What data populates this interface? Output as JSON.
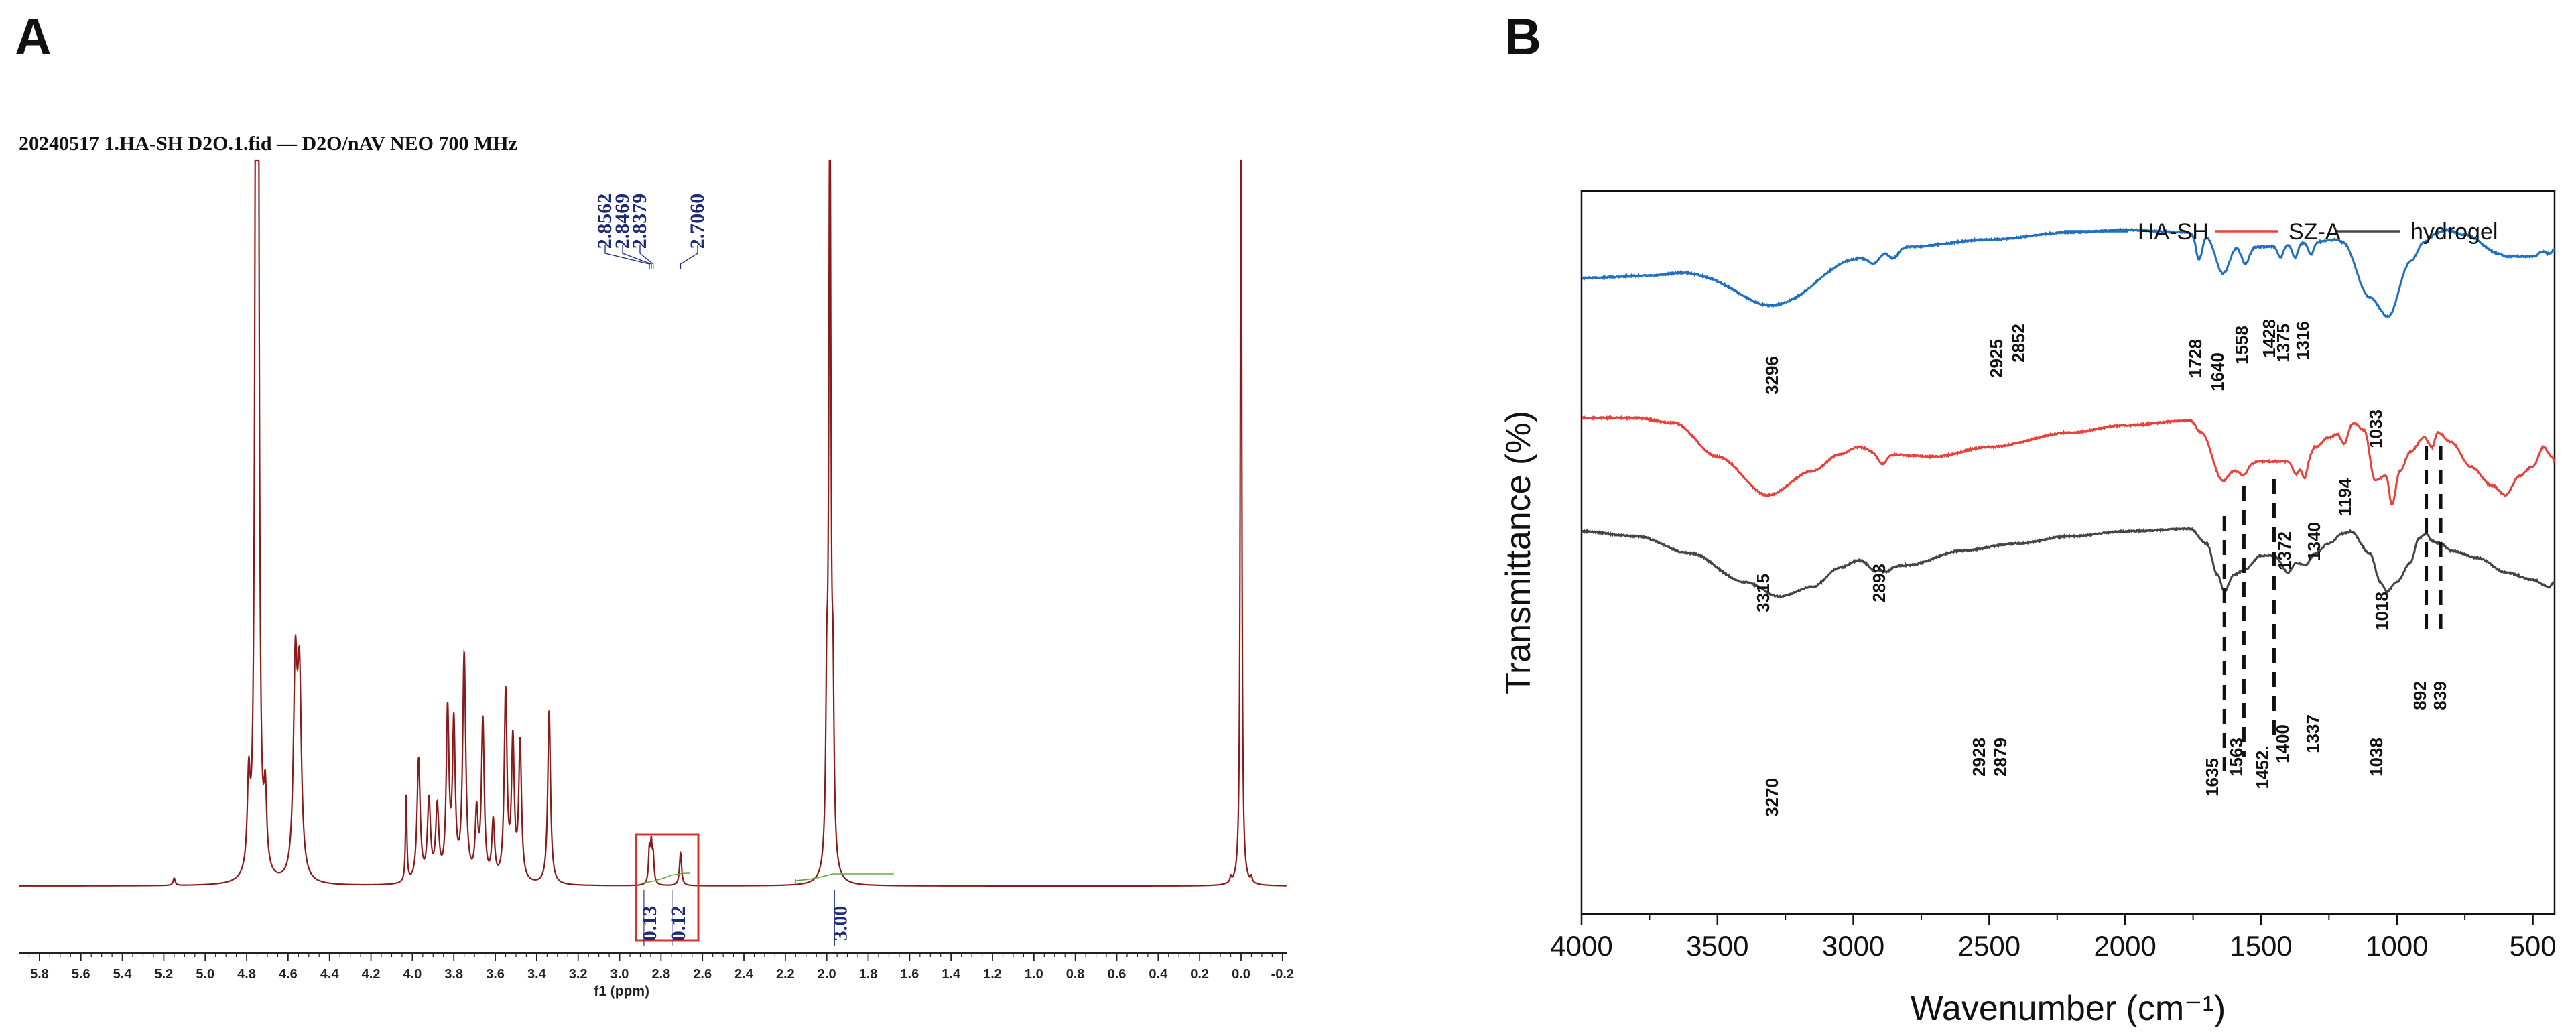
{
  "panels": {
    "a": "A",
    "b": "B"
  },
  "chart_data": [
    {
      "type": "line",
      "title": "20240517 1.HA-SH D2O.1.fid — D2O/nAV NEO 700 MHz",
      "xlabel": "f1 (ppm)",
      "xlim": [
        5.9,
        -0.22
      ],
      "xticks": [
        "5.8",
        "5.6",
        "5.4",
        "5.2",
        "5.0",
        "4.8",
        "4.6",
        "4.4",
        "4.2",
        "4.0",
        "3.8",
        "3.6",
        "3.4",
        "3.2",
        "3.0",
        "2.8",
        "2.6",
        "2.4",
        "2.2",
        "2.0",
        "1.8",
        "1.6",
        "1.4",
        "1.2",
        "1.0",
        "0.8",
        "0.6",
        "0.4",
        "0.2",
        "0.0",
        "-0.2"
      ],
      "color": "#8b1a1a",
      "peaks": [
        {
          "ppm": 5.15,
          "h": 0.01,
          "w": 0.006
        },
        {
          "ppm": 4.79,
          "h": 0.12,
          "w": 0.008
        },
        {
          "ppm": 4.755,
          "h": 1.2,
          "w": 0.006
        },
        {
          "ppm": 4.745,
          "h": 1.2,
          "w": 0.006
        },
        {
          "ppm": 4.71,
          "h": 0.1,
          "w": 0.008
        },
        {
          "ppm": 4.565,
          "h": 0.28,
          "w": 0.011
        },
        {
          "ppm": 4.545,
          "h": 0.26,
          "w": 0.011
        },
        {
          "ppm": 4.03,
          "h": 0.12,
          "w": 0.004
        },
        {
          "ppm": 3.97,
          "h": 0.17,
          "w": 0.009
        },
        {
          "ppm": 3.92,
          "h": 0.11,
          "w": 0.009
        },
        {
          "ppm": 3.88,
          "h": 0.1,
          "w": 0.009
        },
        {
          "ppm": 3.83,
          "h": 0.23,
          "w": 0.008
        },
        {
          "ppm": 3.8,
          "h": 0.21,
          "w": 0.008
        },
        {
          "ppm": 3.75,
          "h": 0.31,
          "w": 0.009
        },
        {
          "ppm": 3.69,
          "h": 0.09,
          "w": 0.008
        },
        {
          "ppm": 3.66,
          "h": 0.22,
          "w": 0.008
        },
        {
          "ppm": 3.61,
          "h": 0.08,
          "w": 0.008
        },
        {
          "ppm": 3.55,
          "h": 0.26,
          "w": 0.008
        },
        {
          "ppm": 3.515,
          "h": 0.19,
          "w": 0.008
        },
        {
          "ppm": 3.48,
          "h": 0.19,
          "w": 0.008
        },
        {
          "ppm": 3.34,
          "h": 0.24,
          "w": 0.008
        },
        {
          "ppm": 2.8562,
          "h": 0.045,
          "w": 0.005
        },
        {
          "ppm": 2.8469,
          "h": 0.05,
          "w": 0.005
        },
        {
          "ppm": 2.8379,
          "h": 0.035,
          "w": 0.005
        },
        {
          "ppm": 2.706,
          "h": 0.045,
          "w": 0.006
        },
        {
          "ppm": 2.0,
          "h": 0.2,
          "w": 0.006
        },
        {
          "ppm": 1.985,
          "h": 1.1,
          "w": 0.006
        },
        {
          "ppm": 1.97,
          "h": 0.2,
          "w": 0.006
        },
        {
          "ppm": 0.05,
          "h": 0.008,
          "w": 0.004
        },
        {
          "ppm": 0.0,
          "h": 1.2,
          "w": 0.004
        },
        {
          "ppm": -0.05,
          "h": 0.008,
          "w": 0.004
        }
      ],
      "peak_labels": [
        "2.8562",
        "2.8469",
        "2.8379",
        "2.7060"
      ],
      "integrals": [
        {
          "label": "0.13",
          "ppm": 2.85
        },
        {
          "label": "0.12",
          "ppm": 2.71
        },
        {
          "label": "3.00",
          "ppm": 1.93
        }
      ],
      "highlight_box": {
        "from_ppm": 2.92,
        "to_ppm": 2.62
      }
    },
    {
      "type": "line",
      "xlabel": "Wavenumber (cm⁻¹)",
      "ylabel": "Transmittance (%)",
      "xlim": [
        4000,
        420
      ],
      "xticks": [
        4000,
        3500,
        3000,
        2500,
        2000,
        1500,
        1000,
        500
      ],
      "legend_position": "top-right",
      "series": [
        {
          "name": "HA-SH",
          "color": "#1f6fbf",
          "baseline": [
            [
              4000,
              0.82
            ],
            [
              3750,
              0.81
            ],
            [
              3600,
              0.79
            ],
            [
              3200,
              0.77
            ],
            [
              3000,
              0.73
            ],
            [
              2800,
              0.69
            ],
            [
              2500,
              0.66
            ],
            [
              2200,
              0.63
            ],
            [
              2000,
              0.62
            ],
            [
              1760,
              0.63
            ],
            [
              1740,
              0.62
            ],
            [
              1650,
              0.66
            ],
            [
              1500,
              0.69
            ],
            [
              1300,
              0.67
            ],
            [
              1220,
              0.66
            ],
            [
              1200,
              0.67
            ],
            [
              1100,
              0.9
            ],
            [
              1033,
              0.98
            ],
            [
              950,
              0.75
            ],
            [
              900,
              0.67
            ],
            [
              850,
              0.63
            ],
            [
              820,
              0.62
            ],
            [
              750,
              0.64
            ],
            [
              620,
              0.72
            ],
            [
              600,
              0.73
            ],
            [
              500,
              0.73
            ],
            [
              460,
              0.71
            ],
            [
              440,
              0.72
            ],
            [
              420,
              0.7
            ]
          ],
          "peaks": [
            [
              3296,
              0.16,
              130
            ],
            [
              2925,
              0.04,
              20
            ],
            [
              2852,
              0.04,
              18
            ],
            [
              1728,
              0.12,
              12
            ],
            [
              1640,
              0.14,
              25
            ],
            [
              1558,
              0.08,
              15
            ],
            [
              1428,
              0.05,
              10
            ],
            [
              1375,
              0.06,
              10
            ],
            [
              1316,
              0.05,
              10
            ]
          ],
          "labels": [
            "3296",
            "2925",
            "2852",
            "1728",
            "1640",
            "1558",
            "1428",
            "1375",
            "1316",
            "1033"
          ]
        },
        {
          "name": "SZ-A",
          "color": "#e8413a",
          "baseline": [
            [
              4000,
              1.4
            ],
            [
              3800,
              1.4
            ],
            [
              3660,
              1.42
            ],
            [
              3500,
              1.56
            ],
            [
              3315,
              1.72
            ],
            [
              3150,
              1.62
            ],
            [
              3050,
              1.55
            ],
            [
              2980,
              1.52
            ],
            [
              2900,
              1.55
            ],
            [
              2700,
              1.56
            ],
            [
              2500,
              1.52
            ],
            [
              2200,
              1.46
            ],
            [
              2000,
              1.43
            ],
            [
              1760,
              1.41
            ],
            [
              1720,
              1.46
            ],
            [
              1640,
              1.66
            ],
            [
              1600,
              1.62
            ],
            [
              1500,
              1.58
            ],
            [
              1420,
              1.58
            ],
            [
              1340,
              1.6
            ],
            [
              1300,
              1.52
            ],
            [
              1250,
              1.48
            ],
            [
              1200,
              1.45
            ],
            [
              1160,
              1.42
            ],
            [
              1120,
              1.45
            ],
            [
              1080,
              1.66
            ],
            [
              1040,
              1.64
            ],
            [
              1018,
              1.76
            ],
            [
              990,
              1.62
            ],
            [
              950,
              1.54
            ],
            [
              900,
              1.48
            ],
            [
              870,
              1.52
            ],
            [
              850,
              1.46
            ],
            [
              800,
              1.5
            ],
            [
              730,
              1.6
            ],
            [
              650,
              1.68
            ],
            [
              600,
              1.72
            ],
            [
              550,
              1.64
            ],
            [
              500,
              1.6
            ],
            [
              460,
              1.52
            ],
            [
              430,
              1.56
            ],
            [
              420,
              1.58
            ]
          ],
          "peaks": [
            [
              2893,
              0.04,
              15
            ],
            [
              1563,
              0.03,
              12
            ],
            [
              1372,
              0.04,
              10
            ],
            [
              1340,
              0.05,
              8
            ],
            [
              1194,
              0.06,
              12
            ]
          ],
          "labels": [
            "3315",
            "2893",
            "1372",
            "1340",
            "1194",
            "1018"
          ]
        },
        {
          "name": "hydrogel",
          "color": "#444444",
          "baseline": [
            [
              4000,
              1.87
            ],
            [
              3800,
              1.89
            ],
            [
              3600,
              1.96
            ],
            [
              3400,
              2.08
            ],
            [
              3270,
              2.14
            ],
            [
              3150,
              2.1
            ],
            [
              3050,
              2.02
            ],
            [
              2980,
              1.99
            ],
            [
              2900,
              2.02
            ],
            [
              2800,
              2.01
            ],
            [
              2600,
              1.95
            ],
            [
              2400,
              1.92
            ],
            [
              2200,
              1.89
            ],
            [
              2000,
              1.87
            ],
            [
              1760,
              1.86
            ],
            [
              1700,
              1.92
            ],
            [
              1660,
              2.05
            ],
            [
              1635,
              2.12
            ],
            [
              1600,
              2.05
            ],
            [
              1563,
              2.03
            ],
            [
              1500,
              1.97
            ],
            [
              1452,
              1.97
            ],
            [
              1400,
              2.04
            ],
            [
              1370,
              2.0
            ],
            [
              1337,
              2.01
            ],
            [
              1300,
              1.96
            ],
            [
              1250,
              1.92
            ],
            [
              1200,
              1.88
            ],
            [
              1170,
              1.87
            ],
            [
              1100,
              1.96
            ],
            [
              1060,
              2.08
            ],
            [
              1038,
              2.12
            ],
            [
              1000,
              2.08
            ],
            [
              950,
              2.0
            ],
            [
              920,
              1.9
            ],
            [
              892,
              1.88
            ],
            [
              870,
              1.91
            ],
            [
              839,
              1.92
            ],
            [
              800,
              1.95
            ],
            [
              700,
              1.98
            ],
            [
              600,
              2.04
            ],
            [
              500,
              2.07
            ],
            [
              440,
              2.1
            ],
            [
              420,
              2.08
            ]
          ],
          "peaks": [
            [
              2928,
              0.02,
              15
            ],
            [
              2879,
              0.02,
              15
            ]
          ],
          "labels": [
            "3270",
            "2928",
            "2879",
            "1635",
            "1563",
            "1452.",
            "1400",
            "1337",
            "1038",
            "892",
            "839"
          ]
        }
      ]
    }
  ]
}
